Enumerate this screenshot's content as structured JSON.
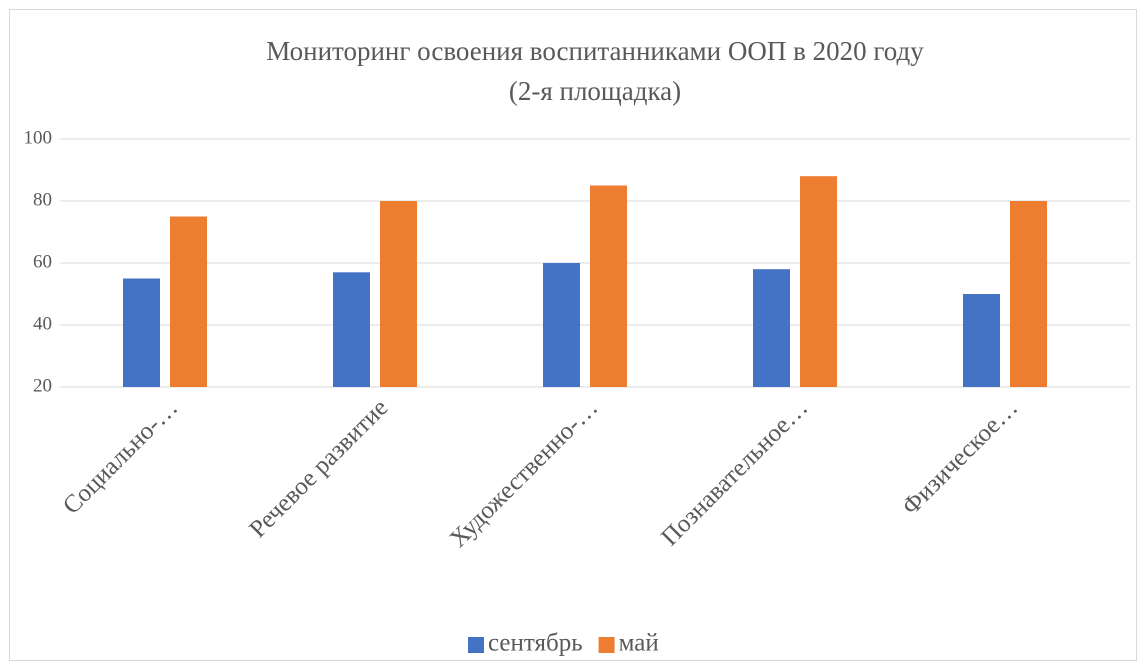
{
  "chart_data": {
    "type": "bar",
    "title": [
      "Мониторинг освоения воспитанниками ООП в 2020 году",
      "(2-я площадка)"
    ],
    "categories": [
      "Социально-…",
      "Речевое развитие",
      "Художественно-…",
      "Познавательное…",
      "Физическое…"
    ],
    "series": [
      {
        "name": "сентябрь",
        "color": "#4472c4",
        "values": [
          55,
          57,
          60,
          58,
          50
        ]
      },
      {
        "name": "май",
        "color": "#ed7d31",
        "values": [
          75,
          80,
          85,
          88,
          80
        ]
      }
    ],
    "ylim": [
      20,
      100
    ],
    "yticks": [
      20,
      40,
      60,
      80,
      100
    ],
    "grid": true,
    "legend": "bottom"
  }
}
